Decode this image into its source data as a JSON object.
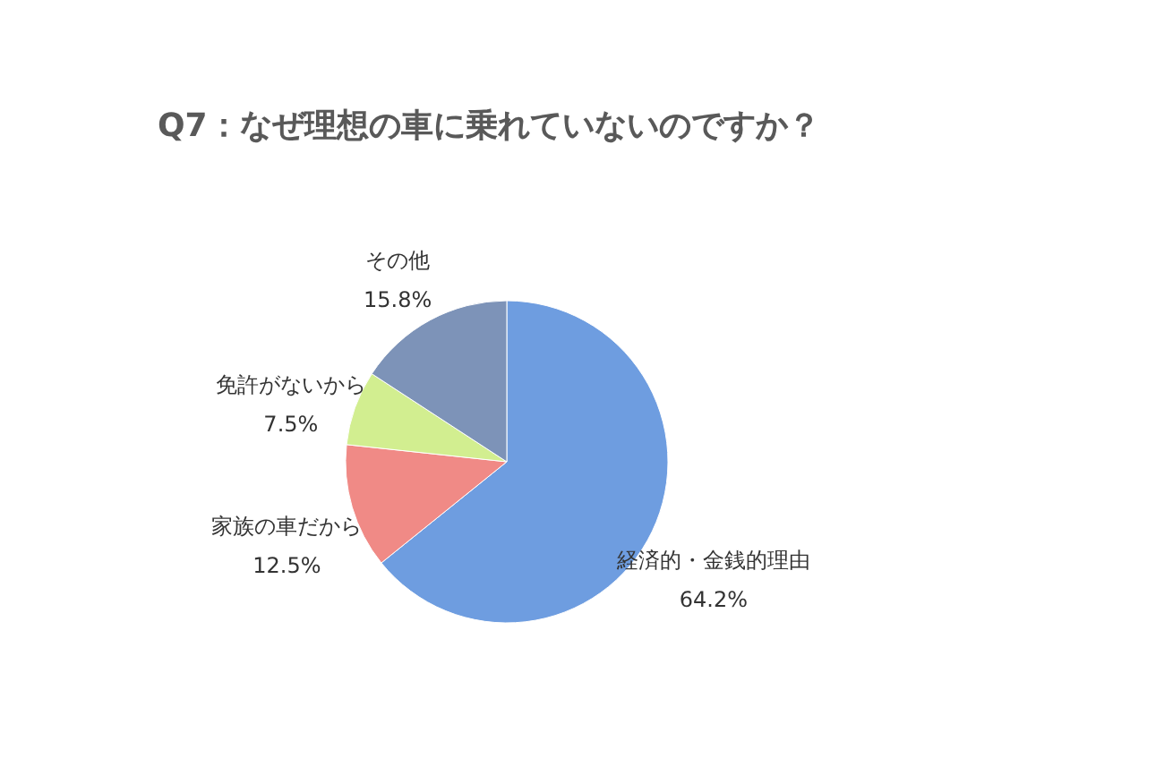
{
  "chart_data": {
    "type": "pie",
    "title": "Q7：なぜ理想の車に乗れていないのですか？",
    "categories": [
      "経済的・金銭的理由",
      "家族の車だから",
      "免許がないから",
      "その他"
    ],
    "values": [
      64.2,
      12.5,
      7.5,
      15.8
    ],
    "value_labels": [
      "64.2%",
      "12.5%",
      "7.5%",
      "15.8%"
    ],
    "colors": [
      "#6e9de0",
      "#f08a86",
      "#d2ee90",
      "#7d93b8"
    ]
  }
}
